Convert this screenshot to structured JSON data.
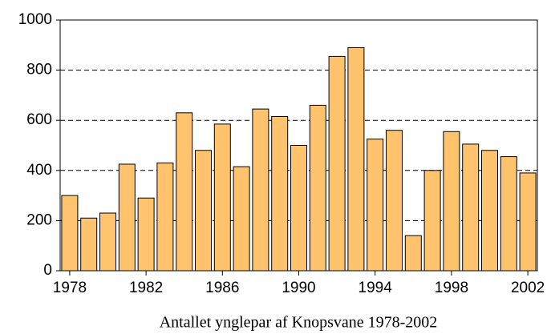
{
  "chart_data": {
    "type": "bar",
    "title": "Antallet ynglepar af Knopsvane 1978-2002",
    "categories": [
      "1978",
      null,
      null,
      null,
      "1982",
      null,
      null,
      null,
      "1986",
      null,
      null,
      null,
      "1990",
      null,
      null,
      null,
      "1994",
      null,
      null,
      null,
      "1998",
      null,
      null,
      null,
      "2002"
    ],
    "values": [
      300,
      210,
      230,
      425,
      290,
      430,
      630,
      480,
      585,
      415,
      645,
      615,
      500,
      660,
      855,
      890,
      525,
      560,
      140,
      400,
      555,
      505,
      480,
      455,
      390
    ],
    "color": "#ffc36e",
    "ylim": [
      0,
      1000
    ],
    "yticks": [
      0,
      200,
      400,
      600,
      800,
      1000
    ],
    "grid": true
  }
}
